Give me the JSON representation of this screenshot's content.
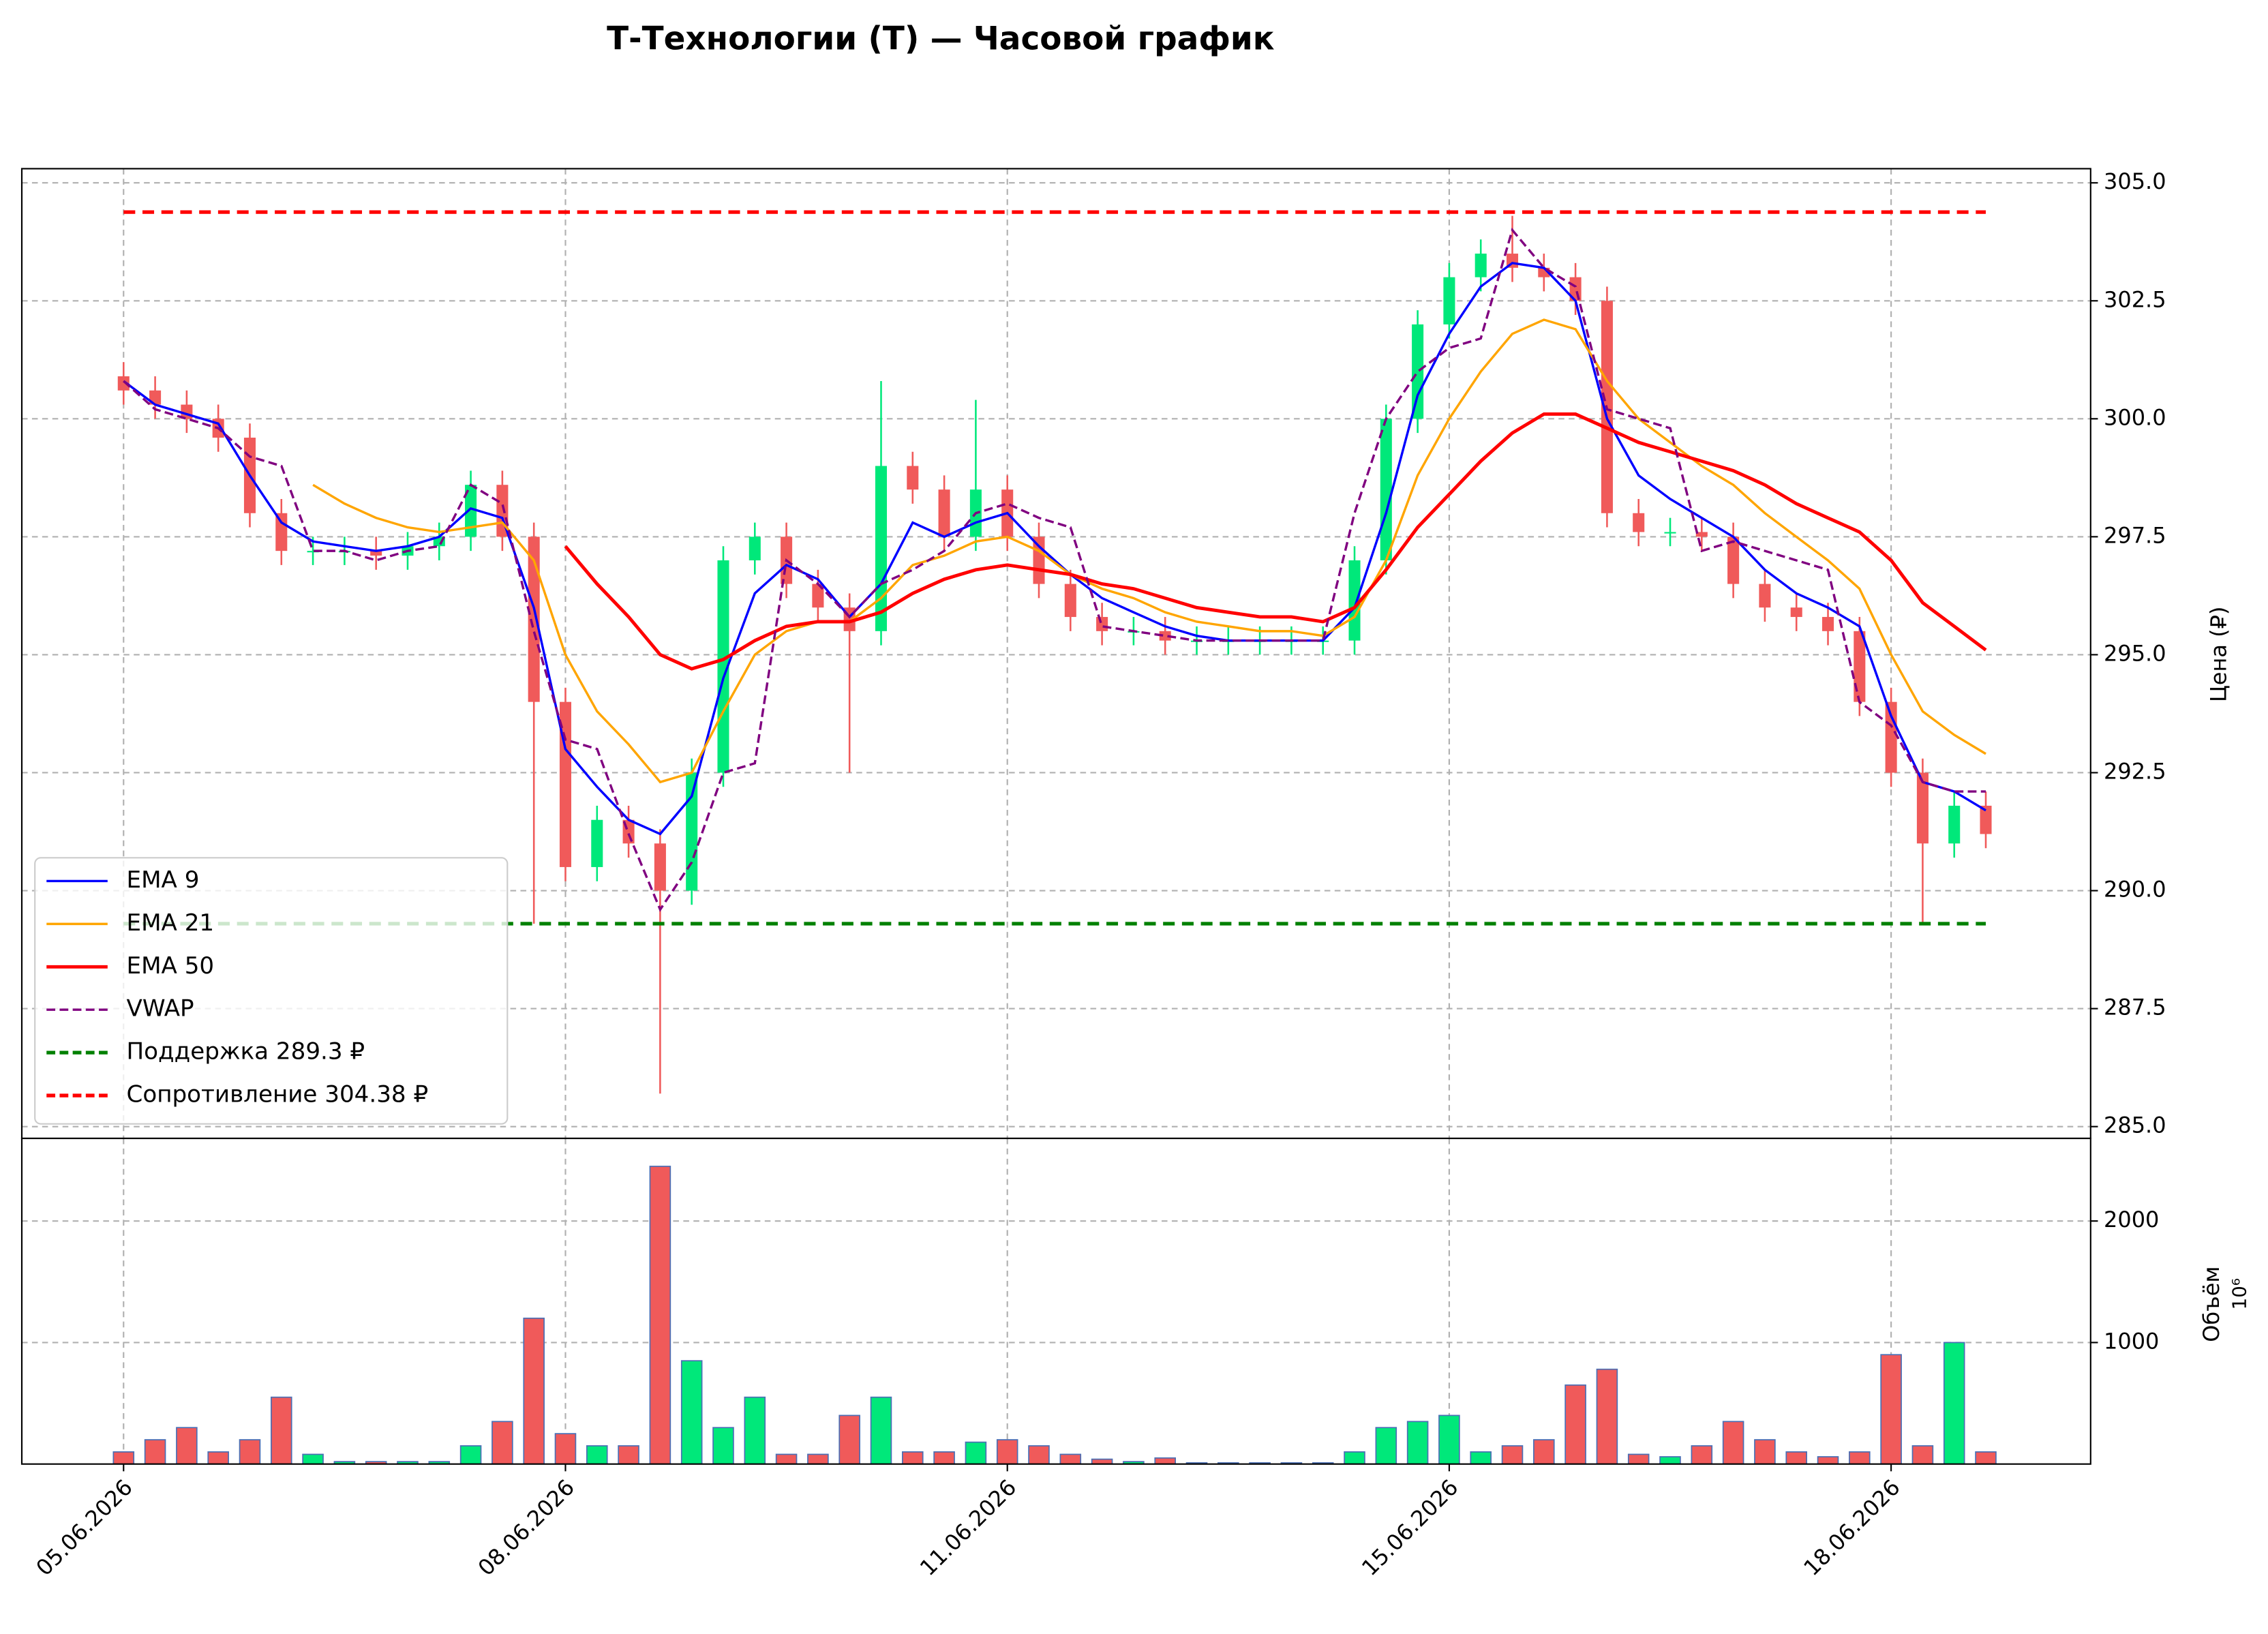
{
  "chart_data": {
    "type": "candlestick",
    "title": "Т-Технологии (T) — Часовой график",
    "ylabel": "Цена (₽)",
    "categories": [
      "05.06.2026",
      null,
      null,
      null,
      null,
      null,
      null,
      null,
      null,
      null,
      null,
      null,
      null,
      null,
      "08.06.2026",
      null,
      null,
      null,
      null,
      null,
      null,
      null,
      null,
      null,
      null,
      null,
      null,
      null,
      "11.06.2026",
      null,
      null,
      null,
      null,
      null,
      null,
      null,
      null,
      null,
      null,
      null,
      null,
      null,
      "15.06.2026",
      null,
      null,
      null,
      null,
      null,
      null,
      null,
      null,
      null,
      null,
      null,
      null,
      null,
      "18.06.2026",
      null,
      null,
      null
    ],
    "open": [
      300.9,
      300.6,
      300.3,
      300.0,
      299.6,
      298.0,
      297.2,
      297.2,
      297.2,
      297.1,
      297.3,
      297.5,
      298.6,
      297.5,
      294.0,
      290.5,
      291.5,
      291.0,
      290.0,
      292.5,
      297.0,
      297.5,
      296.5,
      296.0,
      295.5,
      299.0,
      298.5,
      297.5,
      298.5,
      297.5,
      296.5,
      295.8,
      295.5,
      295.5,
      295.3,
      295.3,
      295.3,
      295.3,
      295.3,
      295.3,
      297.0,
      300.0,
      302.0,
      303.0,
      303.5,
      303.2,
      303.0,
      302.5,
      298.0,
      297.6,
      297.6,
      297.5,
      296.5,
      296.0,
      295.8,
      295.5,
      294.0,
      292.5,
      291.0,
      291.8
    ],
    "high": [
      301.2,
      300.9,
      300.6,
      300.3,
      299.9,
      298.3,
      297.5,
      297.5,
      297.5,
      297.6,
      297.8,
      298.9,
      298.9,
      297.8,
      294.3,
      291.8,
      291.8,
      291.3,
      292.8,
      297.3,
      297.8,
      297.8,
      296.8,
      296.3,
      300.8,
      299.3,
      298.8,
      300.4,
      298.8,
      297.8,
      296.8,
      296.1,
      295.8,
      295.8,
      295.6,
      295.6,
      295.6,
      295.6,
      295.6,
      297.3,
      300.3,
      302.3,
      303.3,
      303.8,
      304.3,
      303.5,
      303.3,
      302.8,
      298.3,
      297.9,
      297.9,
      297.8,
      296.8,
      296.3,
      296.1,
      295.8,
      294.3,
      292.8,
      292.1,
      292.1
    ],
    "low": [
      300.3,
      300.0,
      299.7,
      299.3,
      297.7,
      296.9,
      296.9,
      296.9,
      296.8,
      296.8,
      297.0,
      297.2,
      297.2,
      289.3,
      290.2,
      290.2,
      290.7,
      285.7,
      289.7,
      292.2,
      296.7,
      296.2,
      295.7,
      292.5,
      295.2,
      298.2,
      297.2,
      297.2,
      297.2,
      296.2,
      295.5,
      295.2,
      295.2,
      295.0,
      295.0,
      295.0,
      295.0,
      295.0,
      295.0,
      295.0,
      296.7,
      299.7,
      301.7,
      302.7,
      302.9,
      302.7,
      302.2,
      297.7,
      297.3,
      297.3,
      297.2,
      296.2,
      295.7,
      295.5,
      295.2,
      293.7,
      292.2,
      289.3,
      290.7,
      290.9
    ],
    "close": [
      300.6,
      300.3,
      300.0,
      299.6,
      298.0,
      297.2,
      297.2,
      297.2,
      297.1,
      297.3,
      297.5,
      298.6,
      297.5,
      294.0,
      290.5,
      291.5,
      291.0,
      290.0,
      292.5,
      297.0,
      297.5,
      296.5,
      296.0,
      295.5,
      299.0,
      298.5,
      297.5,
      298.5,
      297.5,
      296.5,
      295.8,
      295.5,
      295.5,
      295.3,
      295.3,
      295.3,
      295.3,
      295.3,
      295.3,
      297.0,
      300.0,
      302.0,
      303.0,
      303.5,
      303.2,
      303.0,
      302.5,
      298.0,
      297.6,
      297.6,
      297.5,
      296.5,
      296.0,
      295.8,
      295.5,
      294.0,
      292.5,
      291.0,
      291.8,
      291.2
    ],
    "up_color": "#00e87a",
    "down_color": "#f05a5a",
    "series": [
      {
        "name": "EMA 9",
        "color": "#0000ff",
        "style": "solid",
        "values": [
          300.8,
          300.3,
          300.1,
          299.9,
          298.8,
          297.8,
          297.4,
          297.3,
          297.2,
          297.3,
          297.5,
          298.1,
          297.9,
          296.0,
          293.0,
          292.2,
          291.5,
          291.2,
          292.0,
          294.5,
          296.3,
          296.9,
          296.6,
          295.8,
          296.5,
          297.8,
          297.5,
          297.8,
          298.0,
          297.3,
          296.7,
          296.2,
          295.9,
          295.6,
          295.4,
          295.3,
          295.3,
          295.3,
          295.3,
          296.0,
          298.0,
          300.5,
          301.8,
          302.8,
          303.3,
          303.2,
          302.5,
          300.0,
          298.8,
          298.3,
          297.9,
          297.5,
          296.8,
          296.3,
          296.0,
          295.6,
          293.7,
          292.3,
          292.1,
          291.7
        ]
      },
      {
        "name": "EMA 21",
        "color": "#ffa500",
        "style": "solid",
        "values": [
          null,
          null,
          null,
          null,
          null,
          null,
          298.6,
          298.2,
          297.9,
          297.7,
          297.6,
          297.7,
          297.8,
          297.0,
          295.0,
          293.8,
          293.1,
          292.3,
          292.5,
          293.8,
          295.0,
          295.5,
          295.7,
          295.7,
          296.2,
          296.9,
          297.1,
          297.4,
          297.5,
          297.2,
          296.7,
          296.4,
          296.2,
          295.9,
          295.7,
          295.6,
          295.5,
          295.5,
          295.4,
          295.8,
          297.0,
          298.8,
          300.0,
          301.0,
          301.8,
          302.1,
          301.9,
          300.8,
          300.0,
          299.5,
          299.0,
          298.6,
          298.0,
          297.5,
          297.0,
          296.4,
          295.0,
          293.8,
          293.3,
          292.9
        ]
      },
      {
        "name": "EMA 50",
        "color": "#ff0000",
        "style": "thick",
        "values": [
          null,
          null,
          null,
          null,
          null,
          null,
          null,
          null,
          null,
          null,
          null,
          null,
          null,
          null,
          297.3,
          296.5,
          295.8,
          295.0,
          294.7,
          294.9,
          295.3,
          295.6,
          295.7,
          295.7,
          295.9,
          296.3,
          296.6,
          296.8,
          296.9,
          296.8,
          296.7,
          296.5,
          296.4,
          296.2,
          296.0,
          295.9,
          295.8,
          295.8,
          295.7,
          296.0,
          296.8,
          297.7,
          298.4,
          299.1,
          299.7,
          300.1,
          300.1,
          299.8,
          299.5,
          299.3,
          299.1,
          298.9,
          298.6,
          298.2,
          297.9,
          297.6,
          297.0,
          296.1,
          295.6,
          295.1
        ]
      },
      {
        "name": "VWAP",
        "color": "#800080",
        "style": "dashed",
        "values": [
          300.8,
          300.2,
          300.0,
          299.8,
          299.2,
          299.0,
          297.2,
          297.2,
          297.0,
          297.2,
          297.3,
          298.6,
          298.2,
          295.5,
          293.2,
          293.0,
          291.2,
          289.6,
          290.6,
          292.5,
          292.7,
          297.0,
          296.5,
          295.8,
          296.5,
          296.8,
          297.2,
          298.0,
          298.2,
          297.9,
          297.7,
          295.6,
          295.5,
          295.4,
          295.3,
          295.3,
          295.3,
          295.3,
          295.3,
          298.0,
          300.0,
          301.0,
          301.5,
          301.7,
          304.0,
          303.2,
          302.8,
          300.2,
          300.0,
          299.8,
          297.2,
          297.4,
          297.2,
          297.0,
          296.8,
          294.0,
          293.5,
          292.3,
          292.1,
          292.1
        ]
      }
    ],
    "hlines": [
      {
        "name": "Поддержка 289.3 ₽",
        "value": 289.3,
        "color": "#008000"
      },
      {
        "name": "Сопротивление 304.38 ₽",
        "value": 304.38,
        "color": "#ff0000"
      }
    ],
    "ylim": [
      284.75,
      305.3
    ],
    "yticks": [
      {
        "value": 285,
        "label": "285.0"
      },
      {
        "value": 287.5,
        "label": "287.5"
      },
      {
        "value": 290,
        "label": "290.0"
      },
      {
        "value": 292.5,
        "label": "292.5"
      },
      {
        "value": 295,
        "label": "295.0"
      },
      {
        "value": 297.5,
        "label": "297.5"
      },
      {
        "value": 300,
        "label": "300.0"
      },
      {
        "value": 302.5,
        "label": "302.5"
      },
      {
        "value": 305,
        "label": "305.0"
      }
    ],
    "grid": true,
    "volume": {
      "ylabel": "Объём",
      "offset_label": "10⁶",
      "ylim": [
        0,
        2680
      ],
      "yticks": [
        1000,
        2000
      ],
      "values": [
        100,
        200,
        300,
        100,
        200,
        550,
        80,
        20,
        20,
        20,
        20,
        150,
        350,
        1200,
        250,
        150,
        150,
        2450,
        850,
        300,
        550,
        80,
        80,
        400,
        550,
        100,
        100,
        180,
        200,
        150,
        80,
        40,
        20,
        50,
        10,
        10,
        10,
        10,
        10,
        100,
        300,
        350,
        400,
        100,
        150,
        200,
        650,
        780,
        80,
        60,
        150,
        350,
        200,
        100,
        60,
        100,
        900,
        150,
        1000,
        100
      ]
    }
  }
}
